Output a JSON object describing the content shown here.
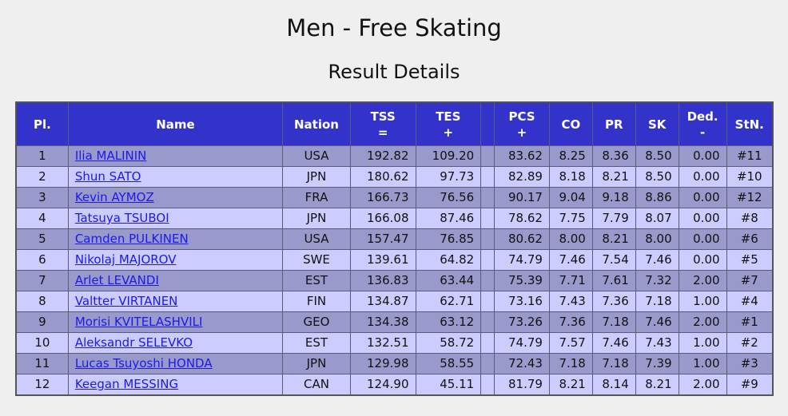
{
  "page": {
    "title": "Men - Free Skating",
    "subtitle": "Result Details"
  },
  "table": {
    "headers": {
      "pl": "Pl.",
      "name": "Name",
      "nation": "Nation",
      "tss": "TSS",
      "tss_sub": "=",
      "tes": "TES",
      "tes_sub": "+",
      "pcs": "PCS",
      "pcs_sub": "+",
      "co": "CO",
      "pr": "PR",
      "sk": "SK",
      "ded": "Ded.",
      "ded_sub": "-",
      "stn": "StN."
    },
    "rows": [
      {
        "pl": "1",
        "name": "Ilia MALININ",
        "nation": "USA",
        "tss": "192.82",
        "tes": "109.20",
        "pcs": "83.62",
        "co": "8.25",
        "pr": "8.36",
        "sk": "8.50",
        "ded": "0.00",
        "stn": "#11"
      },
      {
        "pl": "2",
        "name": "Shun SATO",
        "nation": "JPN",
        "tss": "180.62",
        "tes": "97.73",
        "pcs": "82.89",
        "co": "8.18",
        "pr": "8.21",
        "sk": "8.50",
        "ded": "0.00",
        "stn": "#10"
      },
      {
        "pl": "3",
        "name": "Kevin AYMOZ",
        "nation": "FRA",
        "tss": "166.73",
        "tes": "76.56",
        "pcs": "90.17",
        "co": "9.04",
        "pr": "9.18",
        "sk": "8.86",
        "ded": "0.00",
        "stn": "#12"
      },
      {
        "pl": "4",
        "name": "Tatsuya TSUBOI",
        "nation": "JPN",
        "tss": "166.08",
        "tes": "87.46",
        "pcs": "78.62",
        "co": "7.75",
        "pr": "7.79",
        "sk": "8.07",
        "ded": "0.00",
        "stn": "#8"
      },
      {
        "pl": "5",
        "name": "Camden PULKINEN",
        "nation": "USA",
        "tss": "157.47",
        "tes": "76.85",
        "pcs": "80.62",
        "co": "8.00",
        "pr": "8.21",
        "sk": "8.00",
        "ded": "0.00",
        "stn": "#6"
      },
      {
        "pl": "6",
        "name": "Nikolaj MAJOROV",
        "nation": "SWE",
        "tss": "139.61",
        "tes": "64.82",
        "pcs": "74.79",
        "co": "7.46",
        "pr": "7.54",
        "sk": "7.46",
        "ded": "0.00",
        "stn": "#5"
      },
      {
        "pl": "7",
        "name": "Arlet LEVANDI",
        "nation": "EST",
        "tss": "136.83",
        "tes": "63.44",
        "pcs": "75.39",
        "co": "7.71",
        "pr": "7.61",
        "sk": "7.32",
        "ded": "2.00",
        "stn": "#7"
      },
      {
        "pl": "8",
        "name": "Valtter VIRTANEN",
        "nation": "FIN",
        "tss": "134.87",
        "tes": "62.71",
        "pcs": "73.16",
        "co": "7.43",
        "pr": "7.36",
        "sk": "7.18",
        "ded": "1.00",
        "stn": "#4"
      },
      {
        "pl": "9",
        "name": "Morisi KVITELASHVILI",
        "nation": "GEO",
        "tss": "134.38",
        "tes": "63.12",
        "pcs": "73.26",
        "co": "7.36",
        "pr": "7.18",
        "sk": "7.46",
        "ded": "2.00",
        "stn": "#1"
      },
      {
        "pl": "10",
        "name": "Aleksandr SELEVKO",
        "nation": "EST",
        "tss": "132.51",
        "tes": "58.72",
        "pcs": "74.79",
        "co": "7.57",
        "pr": "7.46",
        "sk": "7.43",
        "ded": "1.00",
        "stn": "#2"
      },
      {
        "pl": "11",
        "name": "Lucas Tsuyoshi HONDA",
        "nation": "JPN",
        "tss": "129.98",
        "tes": "58.55",
        "pcs": "72.43",
        "co": "7.18",
        "pr": "7.18",
        "sk": "7.39",
        "ded": "1.00",
        "stn": "#3"
      },
      {
        "pl": "12",
        "name": "Keegan MESSING",
        "nation": "CAN",
        "tss": "124.90",
        "tes": "45.11",
        "pcs": "81.79",
        "co": "8.21",
        "pr": "8.14",
        "sk": "8.21",
        "ded": "2.00",
        "stn": "#9"
      }
    ]
  },
  "colors": {
    "header_bg": "#3333cc",
    "row_odd": "#9999cc",
    "row_even": "#ccccff",
    "link": "#1a1aee"
  }
}
